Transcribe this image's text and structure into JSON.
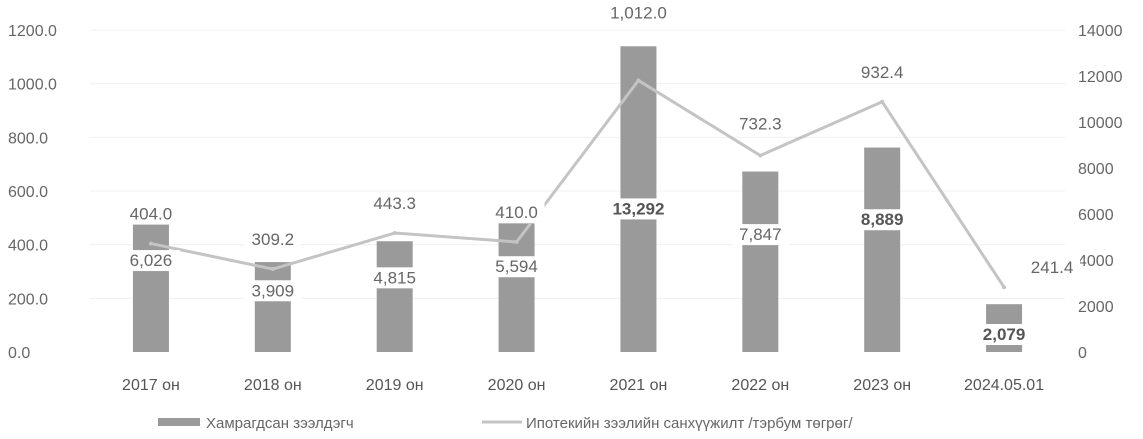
{
  "chart_data": {
    "type": "bar",
    "categories": [
      "2017 он",
      "2018 он",
      "2019 он",
      "2020 он",
      "2021 он",
      "2022 он",
      "2023 он",
      "2024.05.01"
    ],
    "series": [
      {
        "name": "Хамрагдсан зээлдэгч",
        "type": "bar",
        "axis": "right",
        "values": [
          6026,
          3909,
          4815,
          5594,
          13292,
          7847,
          8889,
          2079
        ],
        "labels": [
          "6,026",
          "3,909",
          "4,815",
          "5,594",
          "13,292",
          "7,847",
          "8,889",
          "2,079"
        ]
      },
      {
        "name": "Ипотекийн зээлийн санхүүжилт /тэрбум төгрөг/",
        "type": "line",
        "axis": "left",
        "values": [
          404.0,
          309.2,
          443.3,
          410.0,
          1012.0,
          732.3,
          932.4,
          241.4
        ],
        "labels": [
          "404.0",
          "309.2",
          "443.3",
          "410.0",
          "1,012.0",
          "732.3",
          "932.4",
          "241.4"
        ]
      }
    ],
    "y_left": {
      "ylim": [
        0,
        1200
      ],
      "ticks": [
        "0.0",
        "200.0",
        "400.0",
        "600.0",
        "800.0",
        "1000.0",
        "1200.0"
      ]
    },
    "y_right": {
      "ylim": [
        0,
        14000
      ],
      "ticks": [
        "0",
        "2000",
        "4000",
        "6000",
        "8000",
        "10000",
        "12000",
        "14000"
      ]
    },
    "grid": true,
    "legend_position": "bottom",
    "colors": {
      "bar": "#9a9a9a",
      "line": "#c4c4c4",
      "text": "#666666"
    }
  }
}
